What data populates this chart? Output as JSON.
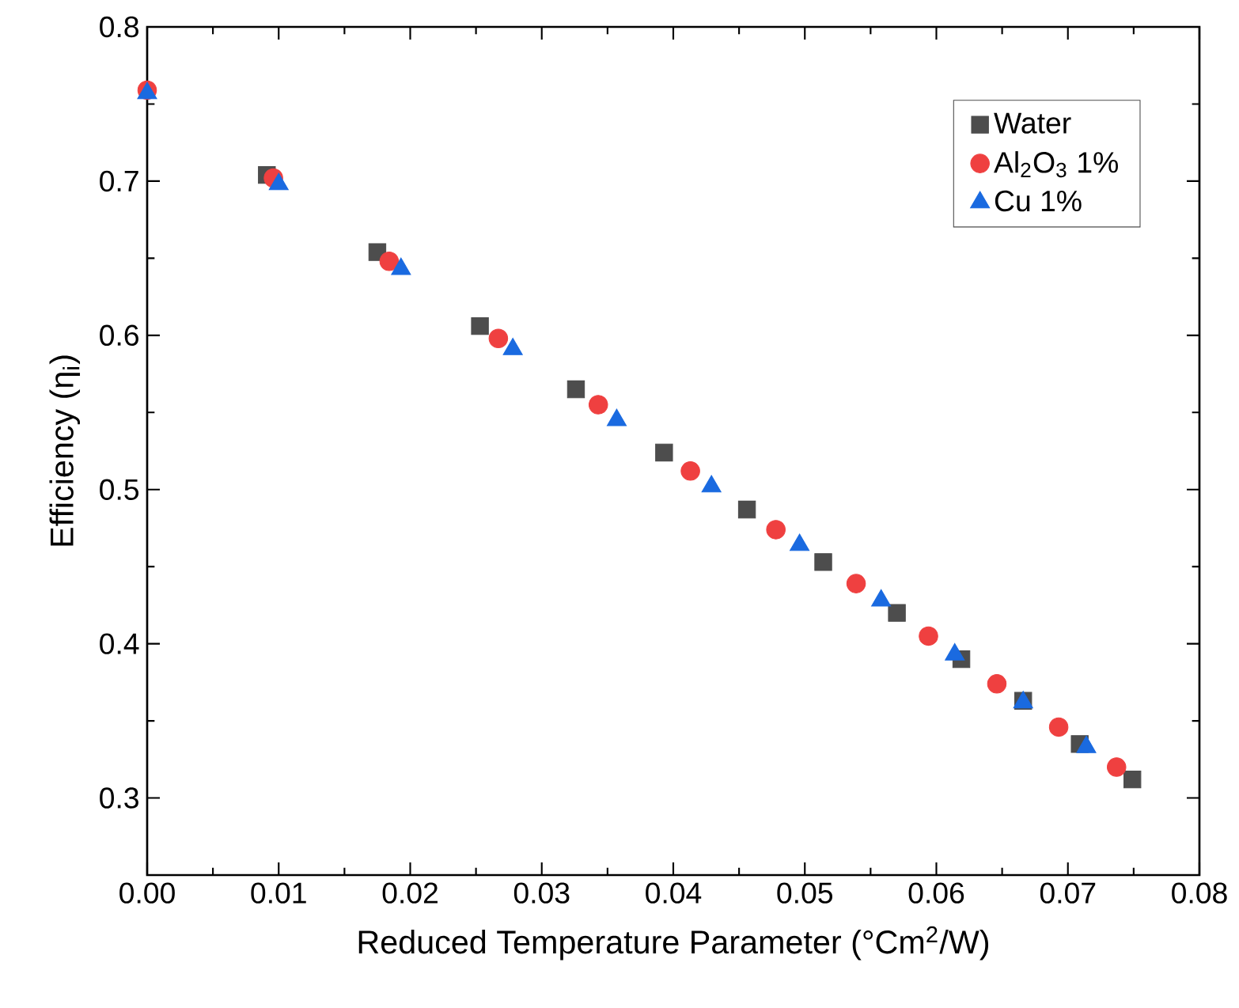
{
  "chart_data": {
    "type": "scatter",
    "xlabel": "Reduced Temperature Parameter (°Cm$^{2}$/W)",
    "ylabel": "Efficiency (η$_{i}$)",
    "xlim": [
      0,
      0.08
    ],
    "ylim": [
      0.25,
      0.8
    ],
    "xticks": [
      {
        "value": 0,
        "label": "0.00"
      },
      {
        "value": 0.01,
        "label": "0.01"
      },
      {
        "value": 0.02,
        "label": "0.02"
      },
      {
        "value": 0.03,
        "label": "0.03"
      },
      {
        "value": 0.04,
        "label": "0.04"
      },
      {
        "value": 0.05,
        "label": "0.05"
      },
      {
        "value": 0.06,
        "label": "0.06"
      },
      {
        "value": 0.07,
        "label": "0.07"
      },
      {
        "value": 0.08,
        "label": "0.08"
      }
    ],
    "yticks": [
      0.3,
      0.4,
      0.5,
      0.6,
      0.7,
      0.8
    ],
    "grid": false,
    "legend": "top right",
    "series": [
      {
        "name": "Water",
        "color": "#4d4d4d",
        "marker": "square",
        "x": [
          0.0091,
          0.0175,
          0.0253,
          0.0326,
          0.0393,
          0.0456,
          0.0514,
          0.057,
          0.0619,
          0.0666,
          0.0709,
          0.0749
        ],
        "values": [
          0.704,
          0.654,
          0.606,
          0.565,
          0.524,
          0.487,
          0.453,
          0.42,
          0.39,
          0.363,
          0.335,
          0.312
        ]
      },
      {
        "name": "Al$_{2}$O$_{3}$ 1%",
        "color": "#ef4040",
        "marker": "circle",
        "x": [
          0,
          0.0096,
          0.0184,
          0.0267,
          0.0343,
          0.0413,
          0.0478,
          0.0539,
          0.0594,
          0.0646,
          0.0693,
          0.0737
        ],
        "values": [
          0.759,
          0.702,
          0.648,
          0.598,
          0.555,
          0.512,
          0.474,
          0.439,
          0.405,
          0.374,
          0.346,
          0.32
        ]
      },
      {
        "name": "Cu 1%",
        "color": "#1a6ae0",
        "marker": "triangle",
        "x": [
          0,
          0.01,
          0.0193,
          0.0278,
          0.0357,
          0.0429,
          0.0496,
          0.0558,
          0.0614,
          0.0666,
          0.0714
        ],
        "values": [
          0.757,
          0.698,
          0.643,
          0.591,
          0.545,
          0.502,
          0.464,
          0.428,
          0.393,
          0.362,
          0.333
        ]
      }
    ]
  }
}
